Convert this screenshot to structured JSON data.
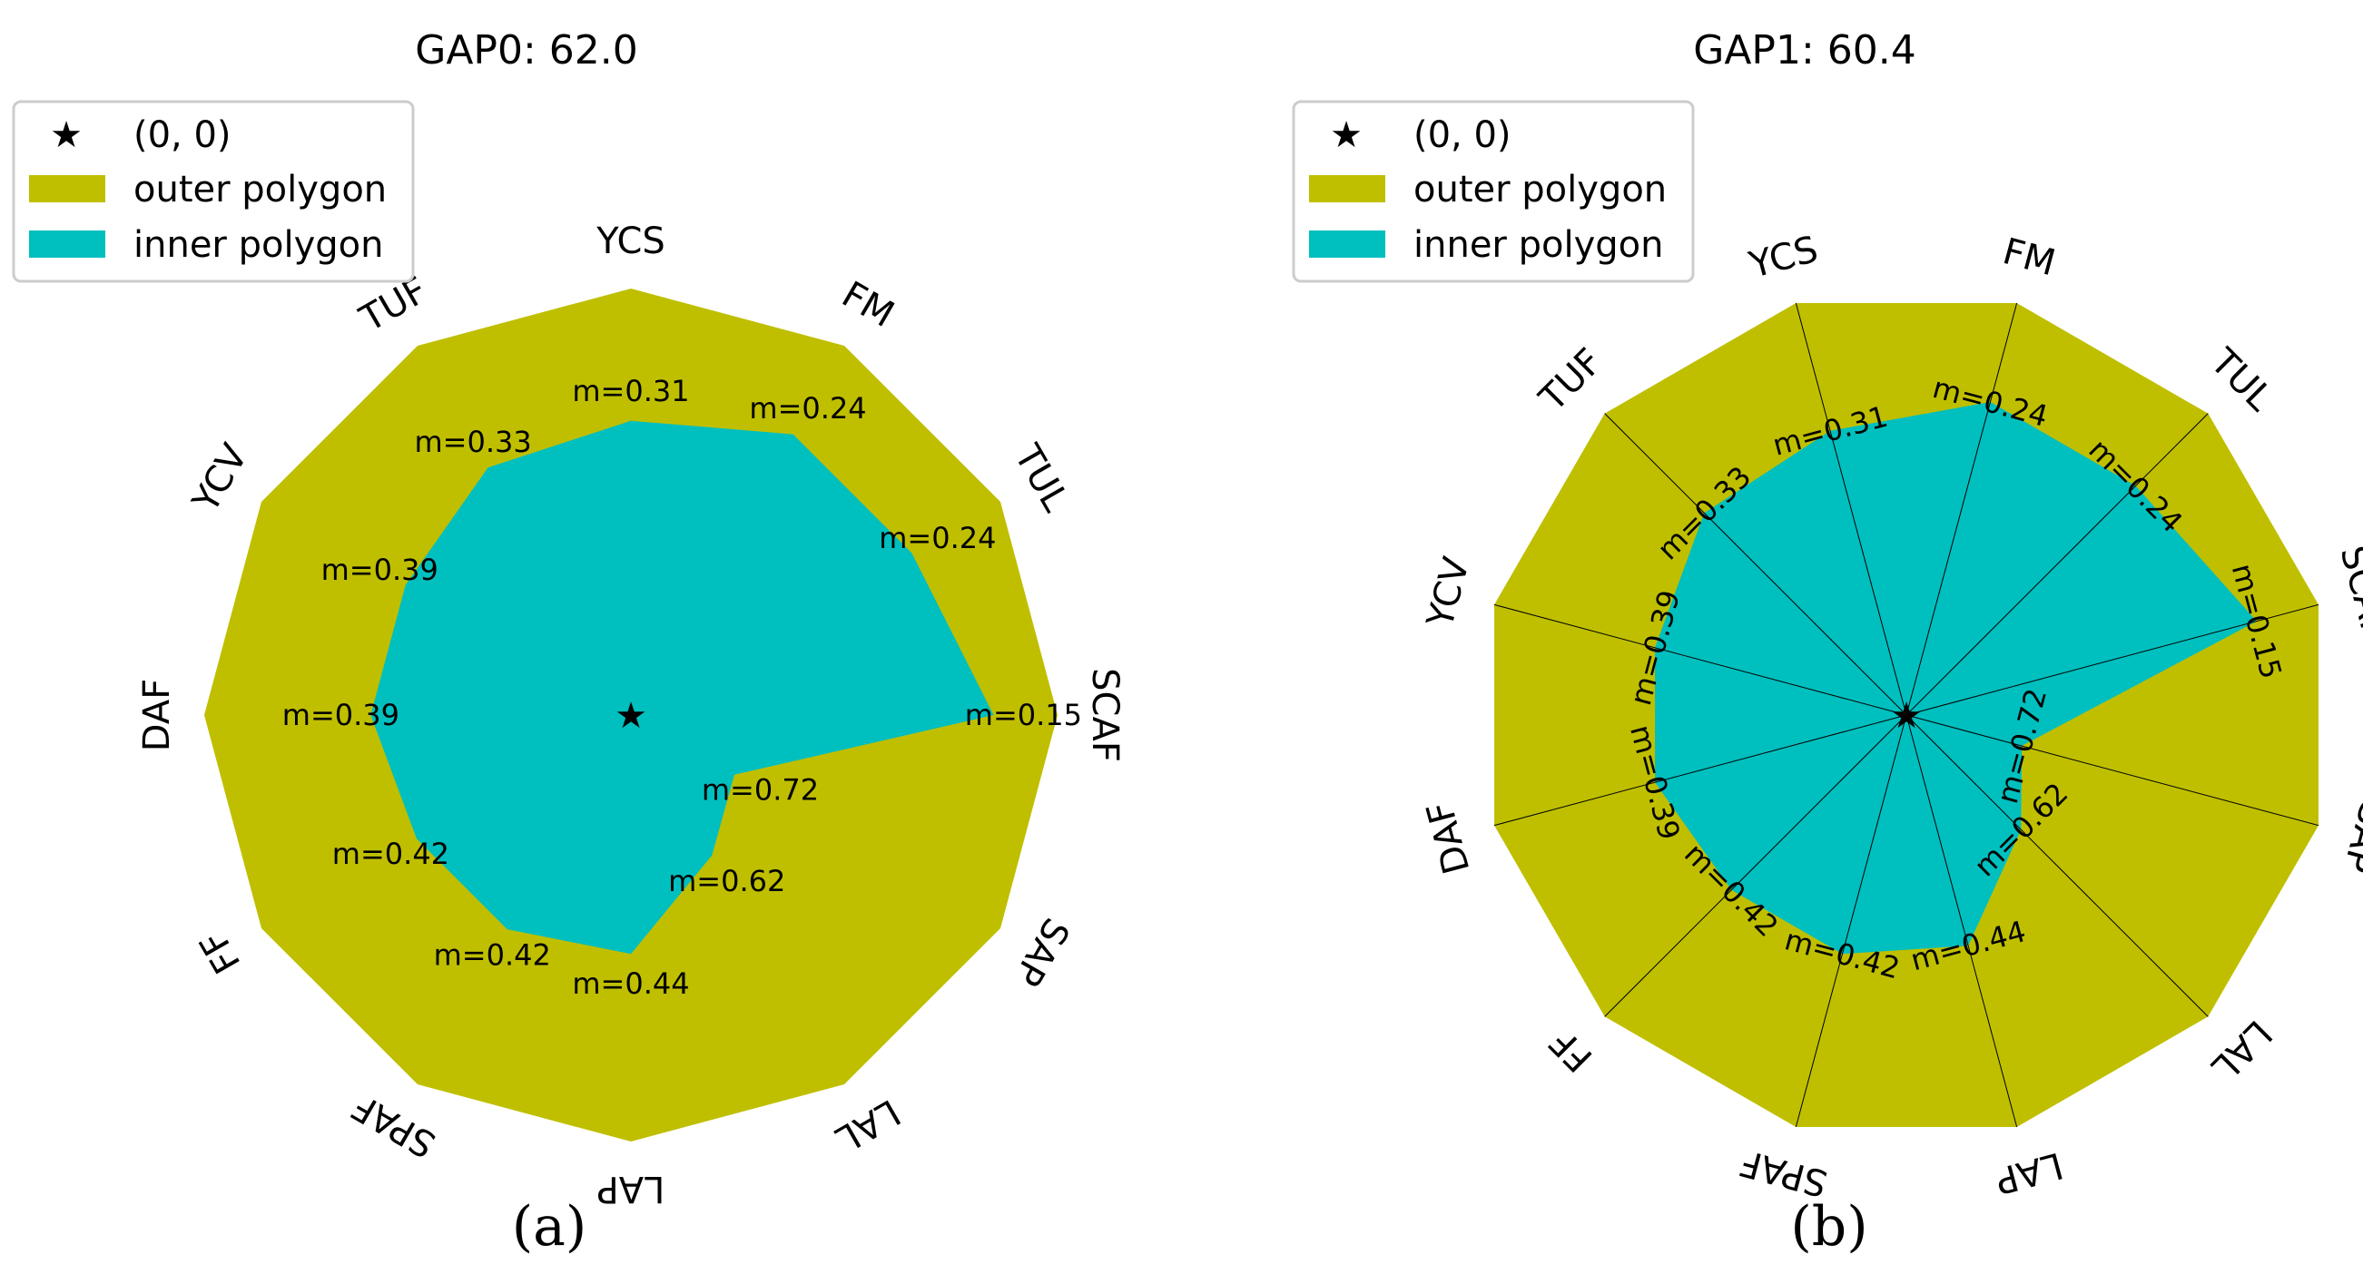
{
  "colors": {
    "outer": "#bfbf00",
    "inner": "#00bfbf",
    "star": "#000000",
    "spoke": "#000000"
  },
  "chart_data": [
    {
      "type": "radar",
      "title": "GAP0: 62.0",
      "panel_label": "(a)",
      "legend": [
        {
          "label": "(0, 0)",
          "marker": "star"
        },
        {
          "label": "outer polygon",
          "marker": "outer-patch"
        },
        {
          "label": "inner polygon",
          "marker": "inner-patch"
        }
      ],
      "categories": [
        "YCS",
        "FM",
        "TUL",
        "SCAF",
        "SAP",
        "LAL",
        "LAP",
        "SPAF",
        "FF",
        "DAF",
        "YCV",
        "TUF"
      ],
      "values": [
        0.31,
        0.24,
        0.24,
        0.15,
        0.72,
        0.62,
        0.44,
        0.42,
        0.42,
        0.39,
        0.39,
        0.33
      ],
      "value_labels": [
        "m=0.31",
        "m=0.24",
        "m=0.24",
        "m=0.15",
        "m=0.72",
        "m=0.62",
        "m=0.44",
        "m=0.42",
        "m=0.42",
        "m=0.39",
        "m=0.39",
        "m=0.33"
      ],
      "outer_value": 1.0,
      "spokes": false
    },
    {
      "type": "radar",
      "title": "GAP1: 60.4",
      "panel_label": "(b)",
      "legend": [
        {
          "label": "(0, 0)",
          "marker": "star"
        },
        {
          "label": "outer polygon",
          "marker": "outer-patch"
        },
        {
          "label": "inner polygon",
          "marker": "inner-patch"
        }
      ],
      "categories": [
        "FM",
        "TUL",
        "SCAF",
        "SAP",
        "LAL",
        "LAP",
        "SPAF",
        "FF",
        "DAF",
        "YCV",
        "TUF",
        "YCS"
      ],
      "values": [
        0.24,
        0.24,
        0.15,
        0.72,
        0.62,
        0.44,
        0.42,
        0.42,
        0.39,
        0.39,
        0.33,
        0.31
      ],
      "value_labels": [
        "m=0.24",
        "m=0.24",
        "m=0.15",
        "m=0.72",
        "m=0.62",
        "m=0.44",
        "m=0.42",
        "m=0.42",
        "m=0.39",
        "m=0.39",
        "m=0.33",
        "m=0.31"
      ],
      "outer_value": 1.0,
      "spokes": true
    }
  ]
}
